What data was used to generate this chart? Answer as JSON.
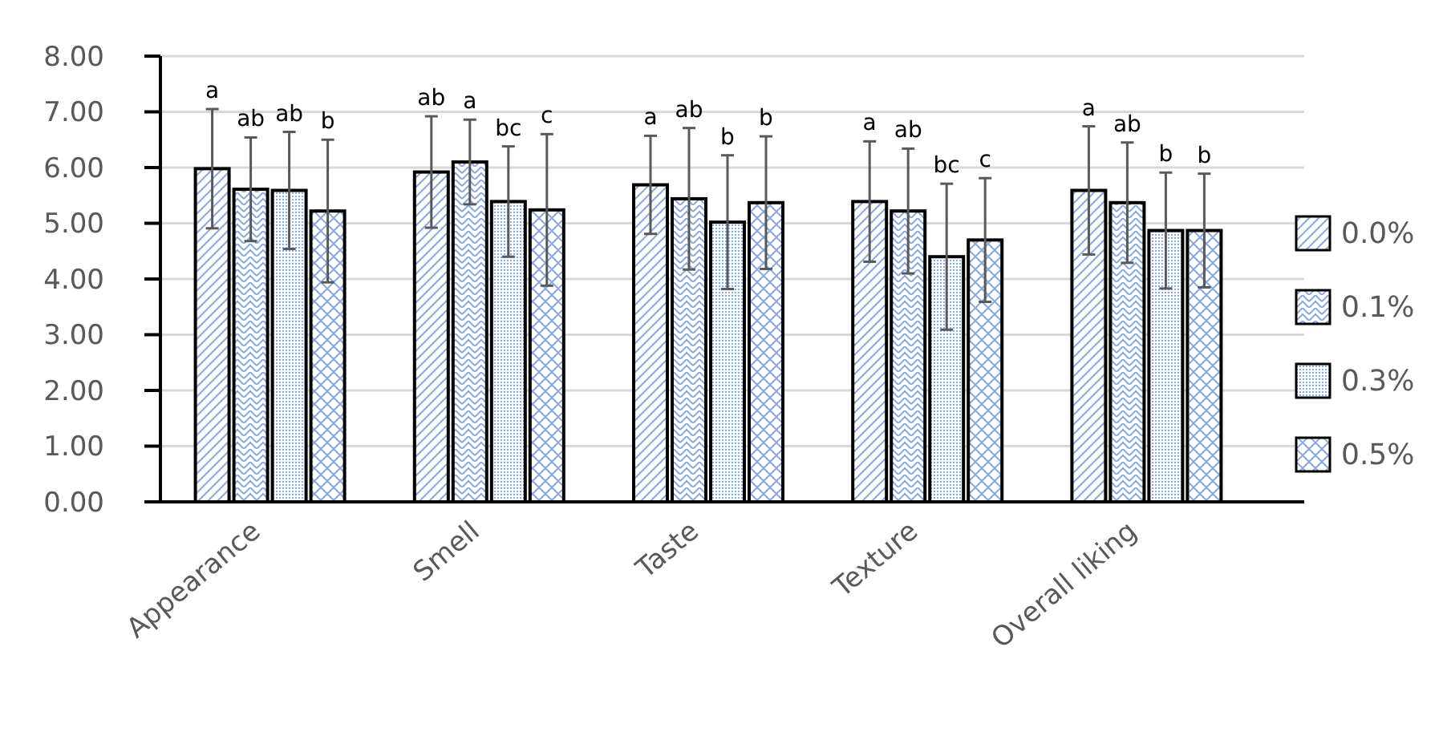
{
  "chart_data": {
    "type": "bar",
    "categories": [
      "Appearance",
      "Smell",
      "Taste",
      "Texture",
      "Overall liking"
    ],
    "series": [
      {
        "name": "0.0%",
        "color": "#000000",
        "values": [
          5.98,
          5.92,
          5.69,
          5.39,
          5.59
        ],
        "errors": [
          1.07,
          1.0,
          0.88,
          1.08,
          1.15
        ]
      },
      {
        "name": "0.1%",
        "color": "#000000",
        "values": [
          5.61,
          6.1,
          5.44,
          5.22,
          5.37
        ],
        "errors": [
          0.93,
          0.76,
          1.27,
          1.12,
          1.08
        ]
      },
      {
        "name": "0.3%",
        "color": "#000000",
        "values": [
          5.59,
          5.39,
          5.02,
          4.4,
          4.87
        ],
        "errors": [
          1.05,
          0.99,
          1.2,
          1.31,
          1.04
        ]
      },
      {
        "name": "0.5%",
        "color": "#000000",
        "values": [
          5.22,
          5.24,
          5.37,
          4.7,
          4.87
        ],
        "errors": [
          1.28,
          1.36,
          1.19,
          1.11,
          1.02
        ]
      }
    ],
    "ylim": [
      0,
      8
    ],
    "yticks": [
      {
        "value": 0,
        "label": "0.00"
      },
      {
        "value": 1,
        "label": "1.00"
      },
      {
        "value": 2,
        "label": "2.00"
      },
      {
        "value": 3,
        "label": "3.00"
      },
      {
        "value": 4,
        "label": "4.00"
      },
      {
        "value": 5,
        "label": "5.00"
      },
      {
        "value": 6,
        "label": "6.00"
      },
      {
        "value": 7,
        "label": "7.00"
      },
      {
        "value": 8,
        "label": "8.00"
      }
    ],
    "grid": "y",
    "legend": "right",
    "annotations": [
      "a",
      "ab",
      "ab",
      "b",
      "ab",
      "a",
      "bc",
      "c",
      "a",
      "ab",
      "b",
      "b",
      "a",
      "ab",
      "bc",
      "c",
      "a",
      "ab",
      "b",
      "b"
    ]
  }
}
